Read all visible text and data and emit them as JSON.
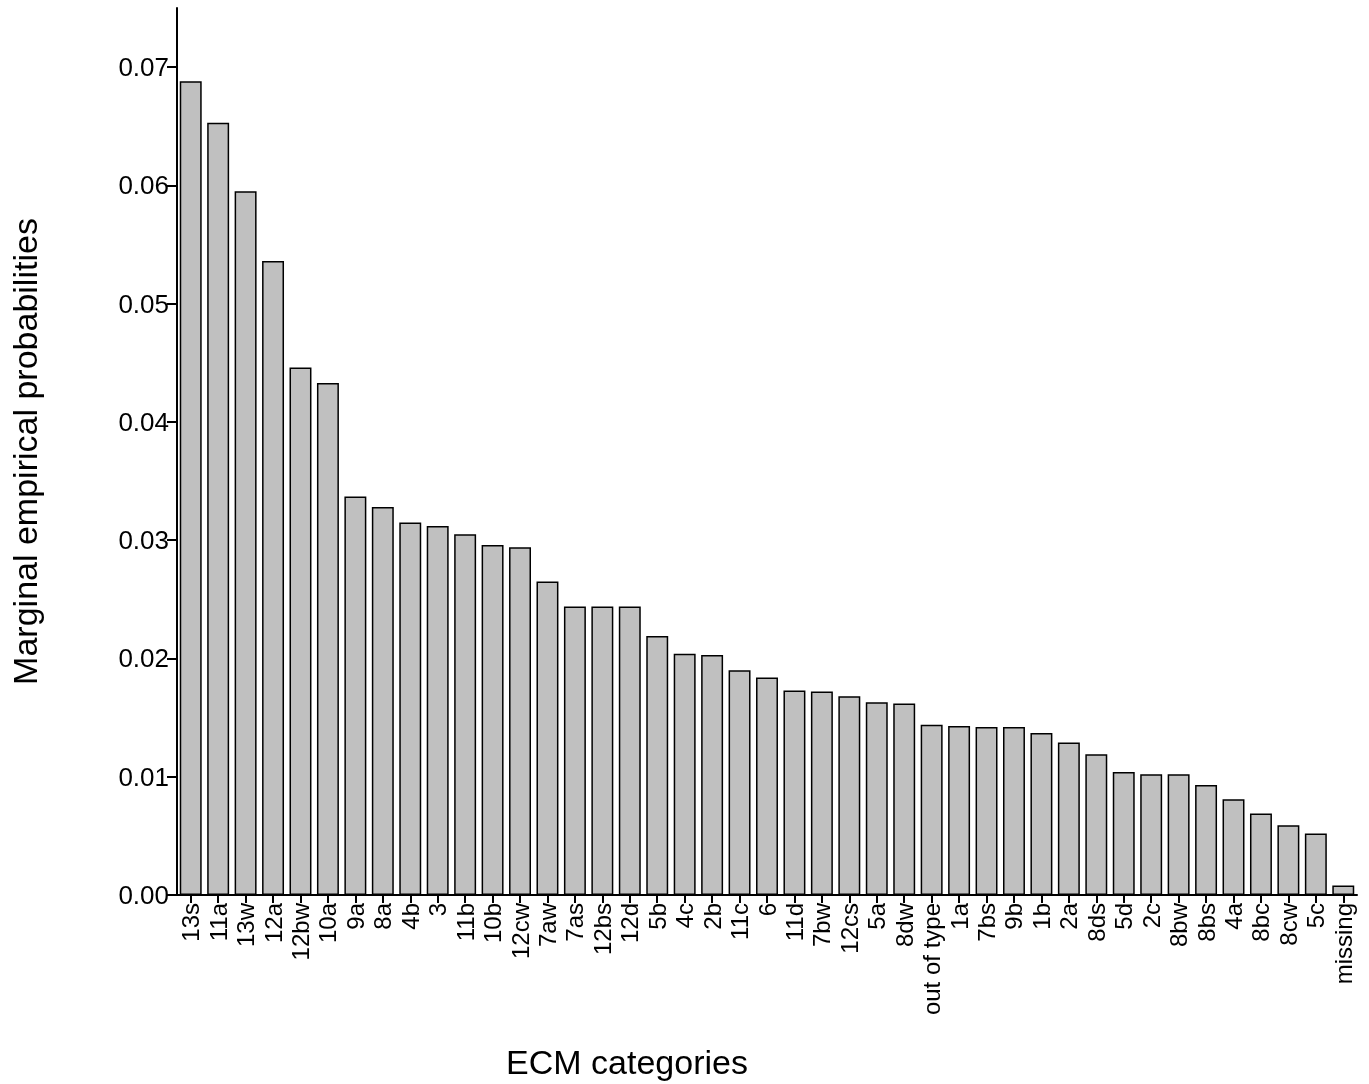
{
  "chart_data": {
    "type": "bar",
    "xlabel": "ECM categories",
    "ylabel": "Marginal empirical probabilities",
    "categories": [
      "13s",
      "11a",
      "13w",
      "12a",
      "12bw",
      "10a",
      "9a",
      "8a",
      "4b",
      "3",
      "11b",
      "10b",
      "12cw",
      "7aw",
      "7as",
      "12bs",
      "12d",
      "5b",
      "4c",
      "2b",
      "11c",
      "6",
      "11d",
      "7bw",
      "12cs",
      "5a",
      "8dw",
      "out of type",
      "1a",
      "7bs",
      "9b",
      "1b",
      "2a",
      "8ds",
      "5d",
      "2c",
      "8bw",
      "8bs",
      "4a",
      "8bc",
      "8cw",
      "5c",
      "missing"
    ],
    "values": [
      0.0688,
      0.0653,
      0.0595,
      0.0536,
      0.0446,
      0.0433,
      0.0337,
      0.0328,
      0.0315,
      0.0312,
      0.0305,
      0.0296,
      0.0294,
      0.0265,
      0.0244,
      0.0244,
      0.0244,
      0.0219,
      0.0204,
      0.0203,
      0.019,
      0.0184,
      0.0173,
      0.0172,
      0.0168,
      0.0163,
      0.0162,
      0.0144,
      0.0143,
      0.0142,
      0.0142,
      0.0137,
      0.0129,
      0.0119,
      0.0104,
      0.0102,
      0.0102,
      0.0093,
      0.0081,
      0.0069,
      0.0059,
      0.0052,
      0.0008
    ],
    "color": "#c0c0c0",
    "ylim": [
      0,
      0.075
    ],
    "yticks": [
      {
        "value": 0,
        "label": "0.00"
      },
      {
        "value": 0.01,
        "label": "0.01"
      },
      {
        "value": 0.02,
        "label": "0.02"
      },
      {
        "value": 0.03,
        "label": "0.03"
      },
      {
        "value": 0.04,
        "label": "0.04"
      },
      {
        "value": 0.05,
        "label": "0.05"
      },
      {
        "value": 0.06,
        "label": "0.06"
      },
      {
        "value": 0.07,
        "label": "0.07"
      }
    ],
    "grid": false
  }
}
